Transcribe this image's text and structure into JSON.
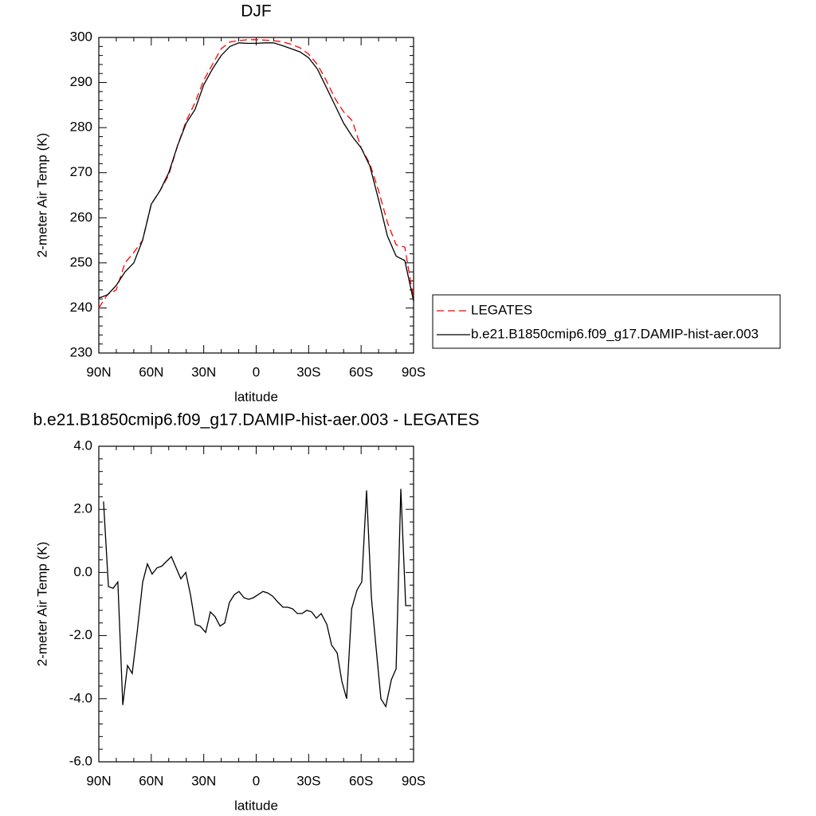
{
  "chart_data": [
    {
      "type": "line",
      "title": "DJF",
      "x_label": "latitude",
      "y_label": "2-meter Air Temp (K)",
      "xlim": [
        90,
        -90
      ],
      "xticks": [
        {
          "value": 90,
          "label": "90N"
        },
        {
          "value": 60,
          "label": "60N"
        },
        {
          "value": 30,
          "label": "30N"
        },
        0,
        {
          "value": -30,
          "label": "30S"
        },
        {
          "value": -60,
          "label": "60S"
        },
        {
          "value": -90,
          "label": "90S"
        }
      ],
      "ylim": [
        230,
        300
      ],
      "yticks": [
        230,
        240,
        250,
        260,
        270,
        280,
        290,
        300
      ],
      "legend": "right",
      "x": [
        90,
        85,
        80,
        75,
        70,
        65,
        60,
        55,
        50,
        45,
        40,
        35,
        30,
        25,
        20,
        15,
        10,
        5,
        0,
        -5,
        -10,
        -15,
        -20,
        -25,
        -30,
        -35,
        -40,
        -45,
        -50,
        -55,
        -60,
        -65,
        -70,
        -75,
        -80,
        -85,
        -90
      ],
      "series": [
        {
          "name": "LEGATES",
          "color": "#ff0000",
          "dash": true,
          "values": [
            240,
            243,
            244,
            250,
            252.3,
            255,
            263,
            266,
            269.5,
            276,
            281.5,
            285.5,
            290.5,
            294,
            297.5,
            299,
            299.3,
            299.5,
            299.5,
            299.4,
            299.3,
            299,
            298.5,
            297.7,
            296.3,
            294,
            290.5,
            286.5,
            283.5,
            281.5,
            275.5,
            272,
            266,
            259,
            254,
            253.5,
            242
          ]
        },
        {
          "name": "b.e21.B1850cmip6.f09_g17.DAMIP-hist-aer.003",
          "color": "#000000",
          "dash": false,
          "values": [
            242.2,
            242.9,
            245,
            248,
            250,
            255,
            263,
            266,
            270,
            276,
            281,
            284,
            289.5,
            293,
            296,
            298,
            298.8,
            298.7,
            298.7,
            298.8,
            298.8,
            298.2,
            297.5,
            296.8,
            295.5,
            293,
            289,
            285,
            281,
            278,
            275.5,
            271.5,
            264,
            256,
            251.5,
            250.5,
            241.5
          ]
        }
      ]
    },
    {
      "type": "line",
      "title": "b.e21.B1850cmip6.f09_g17.DAMIP-hist-aer.003 - LEGATES",
      "x_label": "latitude",
      "y_label": "2-meter Air Temp (K)",
      "xlim": [
        90,
        -90
      ],
      "xticks": [
        {
          "value": 90,
          "label": "90N"
        },
        {
          "value": 60,
          "label": "60N"
        },
        {
          "value": 30,
          "label": "30N"
        },
        0,
        {
          "value": -30,
          "label": "30S"
        },
        {
          "value": -60,
          "label": "60S"
        },
        {
          "value": -90,
          "label": "90S"
        }
      ],
      "ylim": [
        -6,
        4
      ],
      "yticks": [
        {
          "value": -6,
          "label": "-6.0"
        },
        {
          "value": -4,
          "label": "-4.0"
        },
        {
          "value": -2,
          "label": "-2.0"
        },
        {
          "value": 0,
          "label": "0.0"
        },
        {
          "value": 2,
          "label": "2.0"
        },
        {
          "value": 4,
          "label": "4.0"
        }
      ],
      "color": "#000000",
      "x": [
        87.3,
        84.5,
        81.8,
        79.1,
        76.3,
        73.6,
        70.9,
        68.1,
        64.9,
        62.2,
        59.5,
        56.7,
        54.0,
        51.3,
        48.5,
        45.8,
        43.1,
        40.3,
        37.6,
        34.8,
        32.1,
        28.9,
        26.2,
        23.5,
        20.7,
        18.0,
        15.3,
        12.5,
        9.8,
        7.0,
        4.3,
        1.6,
        -1.2,
        -3.9,
        -6.6,
        -9.4,
        -12.6,
        -15.3,
        -18.0,
        -20.8,
        -23.5,
        -26.2,
        -29.0,
        -31.7,
        -34.4,
        -37.2,
        -40.4,
        -43.1,
        -46.3,
        -49.0,
        -51.7,
        -54.6,
        -57.7,
        -60.4,
        -63.1,
        -65.9,
        -68.6,
        -71.3,
        -74.1,
        -77.3,
        -80.0,
        -82.7,
        -85.5,
        -88.7
      ],
      "values": [
        2.25,
        -0.45,
        -0.5,
        -0.3,
        -4.2,
        -2.95,
        -3.2,
        -1.9,
        -0.3,
        0.27,
        -0.05,
        0.15,
        0.2,
        0.35,
        0.5,
        0.15,
        -0.2,
        0.0,
        -0.7,
        -1.65,
        -1.7,
        -1.9,
        -1.25,
        -1.4,
        -1.7,
        -1.6,
        -0.95,
        -0.7,
        -0.6,
        -0.8,
        -0.85,
        -0.8,
        -0.7,
        -0.6,
        -0.65,
        -0.75,
        -0.95,
        -1.1,
        -1.1,
        -1.15,
        -1.3,
        -1.3,
        -1.2,
        -1.25,
        -1.45,
        -1.3,
        -1.65,
        -2.3,
        -2.55,
        -3.45,
        -4.0,
        -1.15,
        -0.55,
        -0.3,
        2.6,
        -0.8,
        -2.4,
        -4.0,
        -4.25,
        -3.4,
        -3.05,
        2.65,
        -1.05,
        -1.05
      ]
    }
  ]
}
